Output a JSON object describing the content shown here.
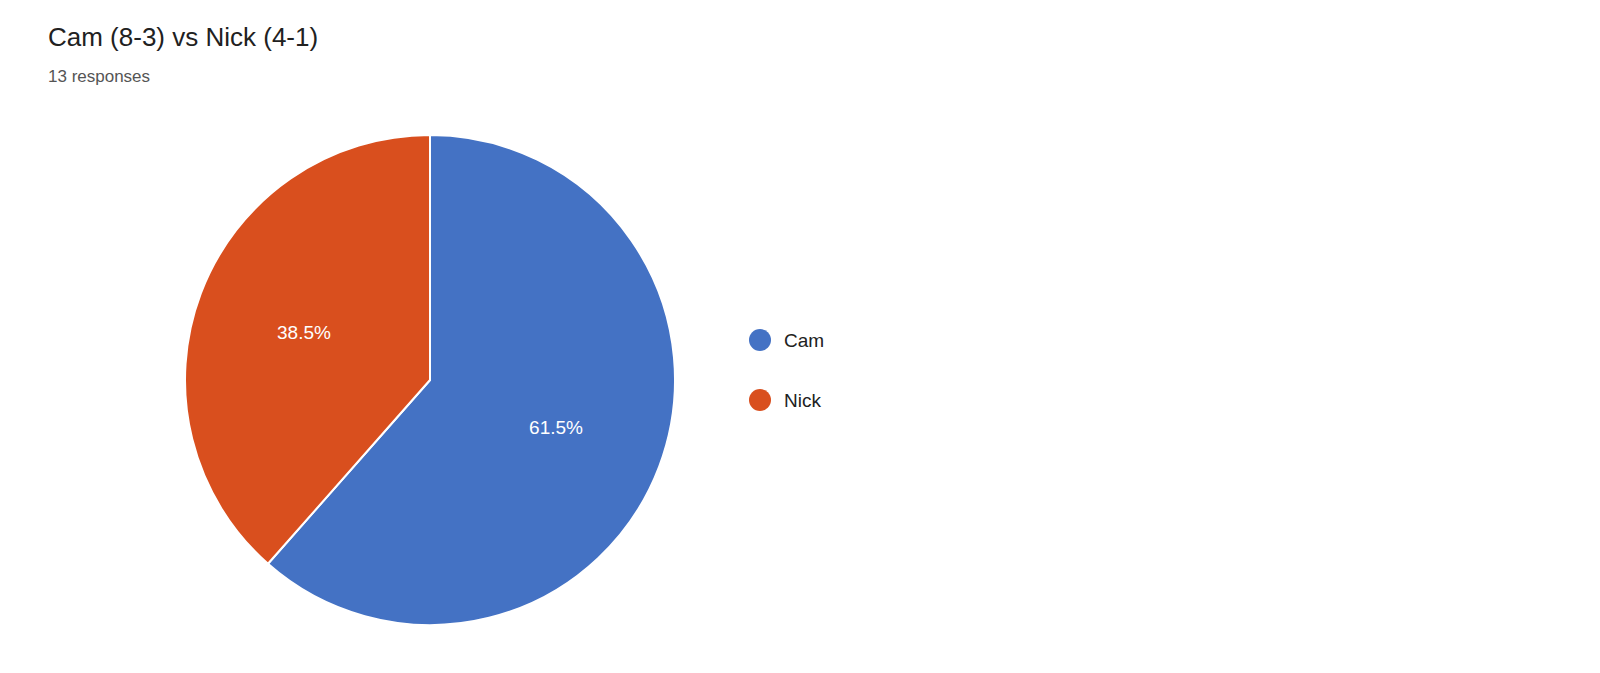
{
  "chart_data": {
    "type": "pie",
    "title": "Cam (8-3) vs Nick (4-1)",
    "subtitle": "13 responses",
    "categories": [
      "Cam",
      "Nick"
    ],
    "values": [
      61.5,
      38.5
    ],
    "value_labels": [
      "61.5%",
      "38.5%"
    ],
    "colors": [
      "#4472C4",
      "#D94F1E"
    ],
    "data_labels": true,
    "legend": "right"
  }
}
